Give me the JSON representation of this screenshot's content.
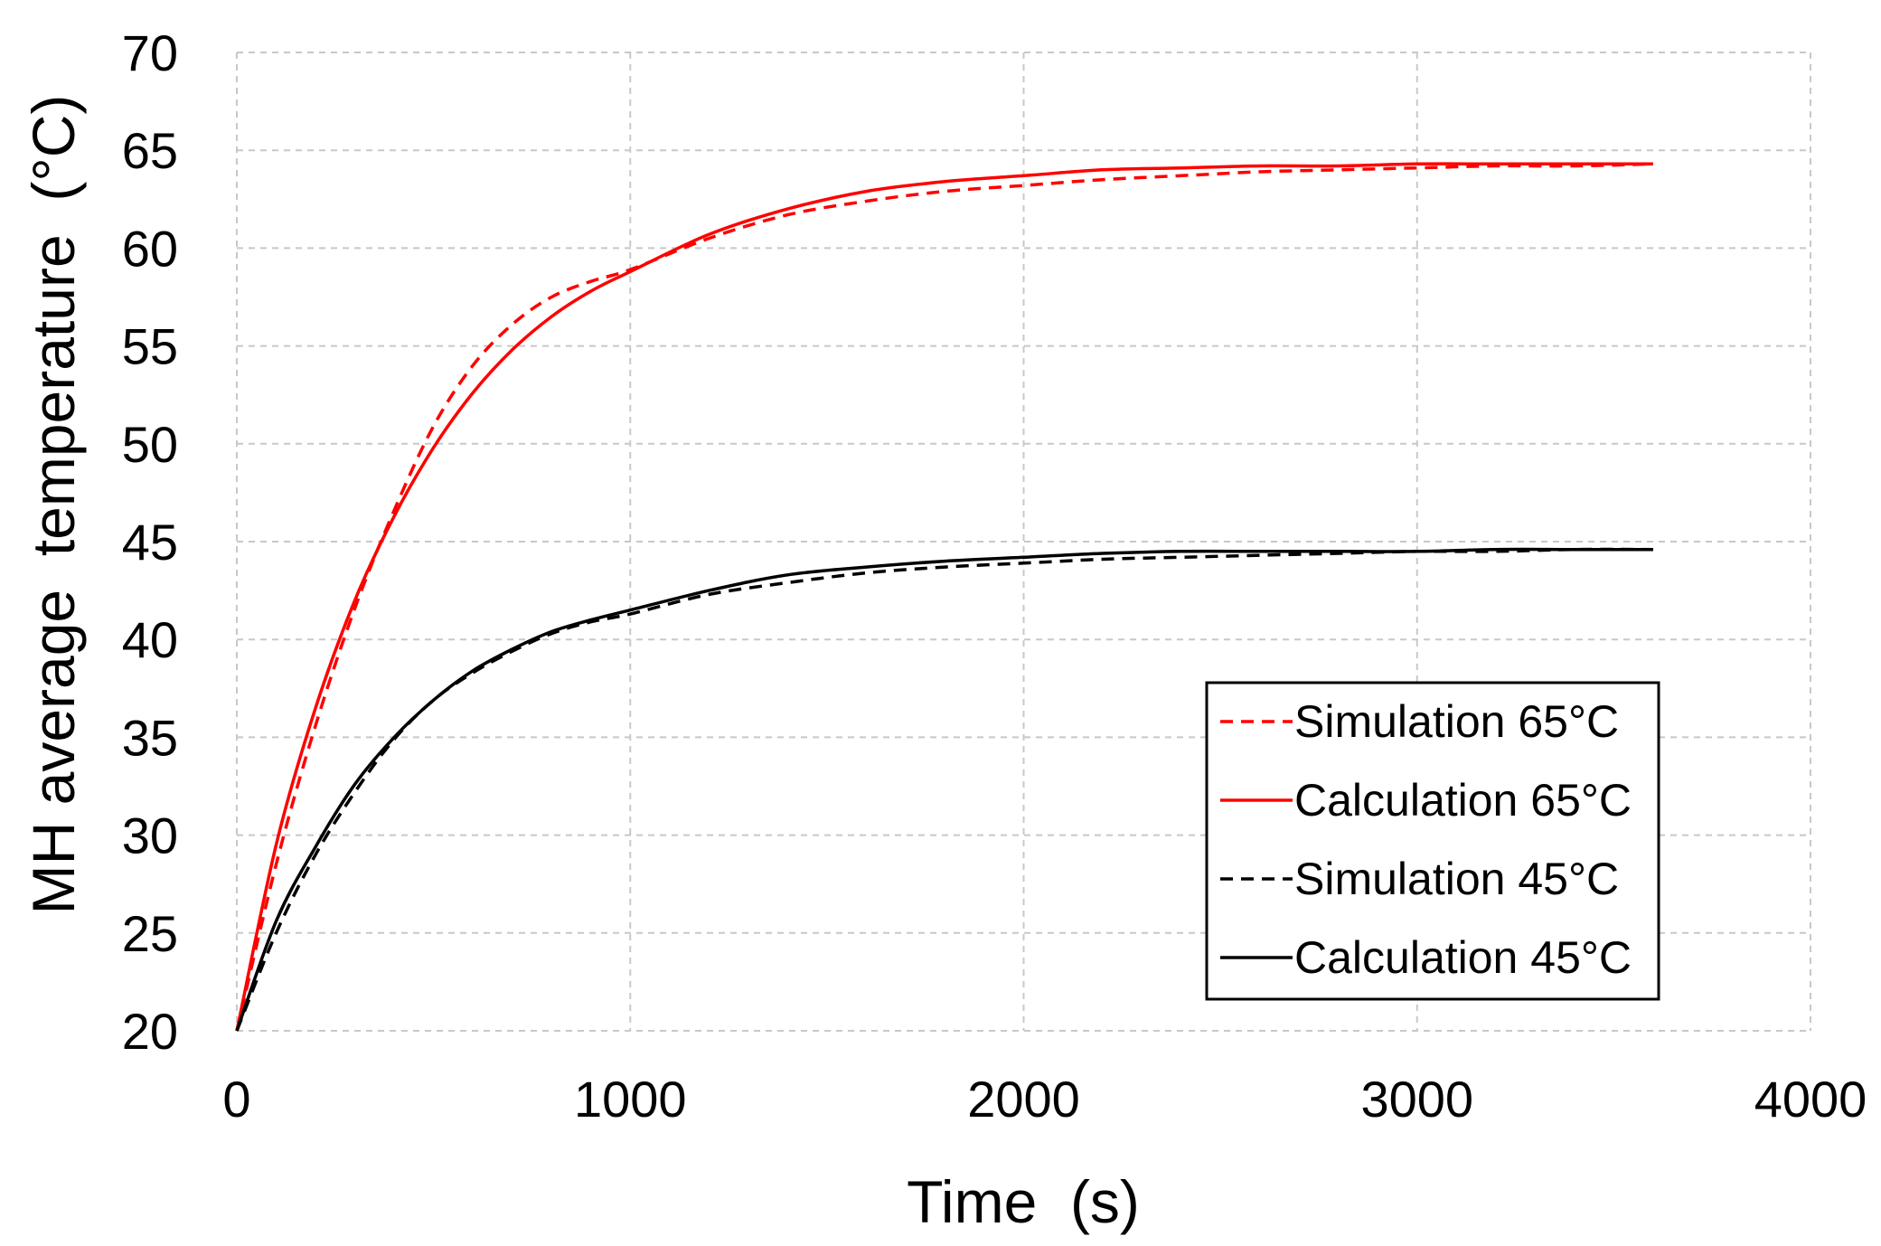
{
  "chart_data": {
    "type": "line",
    "title": "",
    "xlabel": "Time  (s)",
    "ylabel": "MH average  temperature  (°C)",
    "xlim": [
      0,
      4000
    ],
    "ylim": [
      20,
      70
    ],
    "xticks": [
      0,
      1000,
      2000,
      3000,
      4000
    ],
    "yticks": [
      20,
      25,
      30,
      35,
      40,
      45,
      50,
      55,
      60,
      65,
      70
    ],
    "grid": "on (dashed, both axes)",
    "legend_position": "lower-right",
    "x": [
      0,
      100,
      200,
      300,
      400,
      500,
      600,
      700,
      800,
      900,
      1000,
      1200,
      1400,
      1600,
      1800,
      2000,
      2200,
      2400,
      2600,
      2800,
      3000,
      3200,
      3400,
      3600
    ],
    "series": [
      {
        "name": "Simulation 65°C",
        "color": "#ff0000",
        "dash": "dashed",
        "values": [
          20,
          28.5,
          35.6,
          41.6,
          46.6,
          50.9,
          54.0,
          56.1,
          57.5,
          58.3,
          58.9,
          60.5,
          61.7,
          62.4,
          62.9,
          63.2,
          63.5,
          63.7,
          63.9,
          64.0,
          64.1,
          64.2,
          64.2,
          64.3
        ]
      },
      {
        "name": "Calculation 65°C",
        "color": "#ff0000",
        "dash": "solid",
        "values": [
          20,
          29.5,
          36.5,
          42.0,
          46.3,
          49.8,
          52.6,
          54.8,
          56.5,
          57.8,
          58.8,
          60.7,
          62.0,
          62.9,
          63.4,
          63.7,
          64.0,
          64.1,
          64.2,
          64.2,
          64.3,
          64.3,
          64.3,
          64.3
        ]
      },
      {
        "name": "Simulation 45°C",
        "color": "#000000",
        "dash": "dashed",
        "values": [
          20,
          25.0,
          29.0,
          32.2,
          34.9,
          36.9,
          38.3,
          39.4,
          40.3,
          40.9,
          41.3,
          42.3,
          42.9,
          43.4,
          43.7,
          43.9,
          44.1,
          44.2,
          44.3,
          44.4,
          44.5,
          44.5,
          44.6,
          44.6
        ]
      },
      {
        "name": "Calculation 45°C",
        "color": "#000000",
        "dash": "solid",
        "values": [
          20,
          25.6,
          29.4,
          32.6,
          35.0,
          36.9,
          38.4,
          39.5,
          40.4,
          41.0,
          41.5,
          42.5,
          43.3,
          43.7,
          44.0,
          44.2,
          44.4,
          44.5,
          44.5,
          44.5,
          44.5,
          44.6,
          44.6,
          44.6
        ]
      }
    ]
  }
}
